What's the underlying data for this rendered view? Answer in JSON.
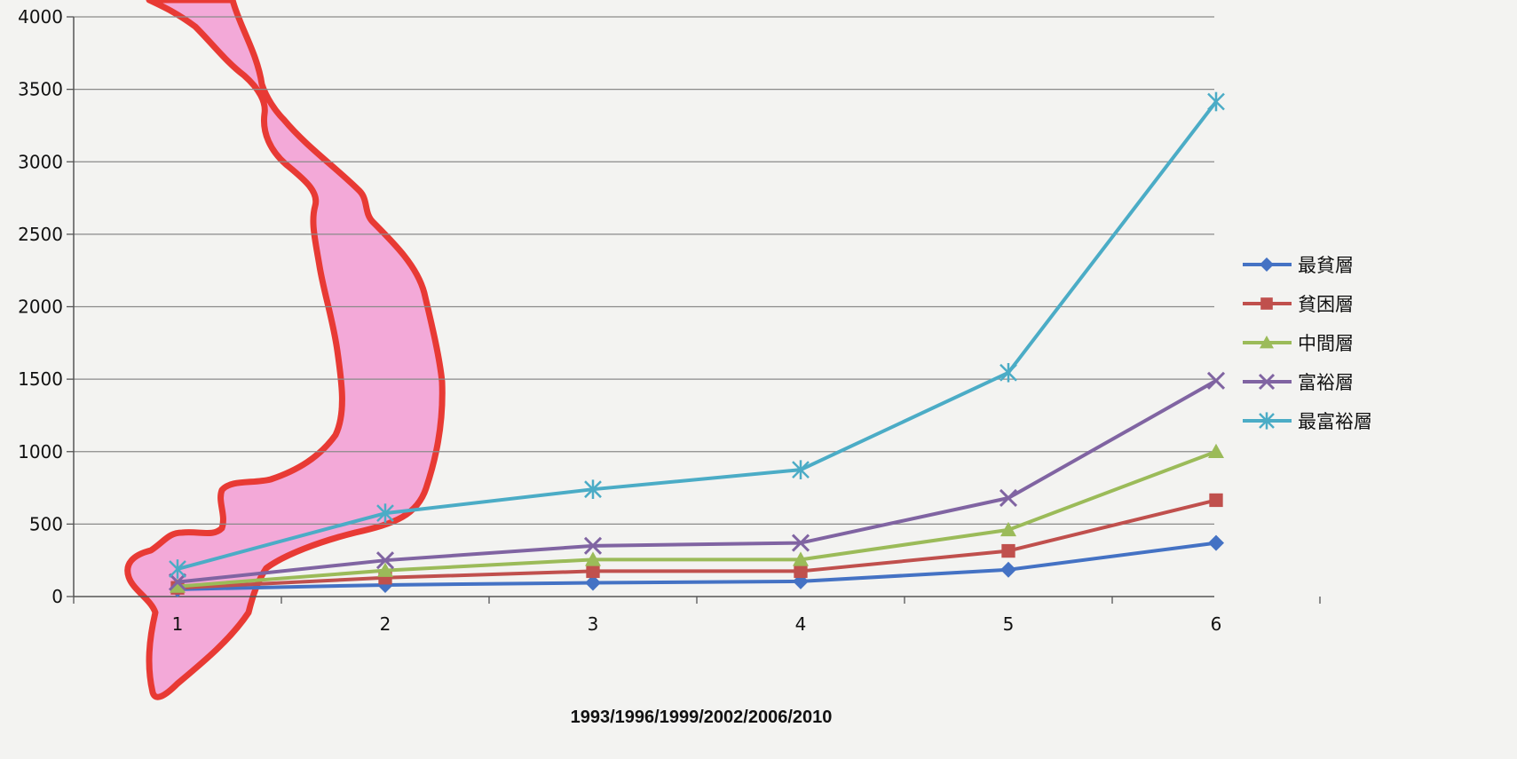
{
  "chart_data": {
    "type": "line",
    "title": "",
    "xlabel": "1993/1996/1999/2002/2006/2010",
    "ylabel": "",
    "x": [
      1,
      2,
      3,
      4,
      5,
      6
    ],
    "x_tick_labels": [
      "1",
      "2",
      "3",
      "4",
      "5",
      "6"
    ],
    "ylim": [
      0,
      4000
    ],
    "y_ticks": [
      0,
      500,
      1000,
      1500,
      2000,
      2500,
      3000,
      3500,
      4000
    ],
    "grid": "horizontal",
    "legend_position": "right",
    "series": [
      {
        "name": "最貧層",
        "marker": "diamond",
        "color": "#4472c4",
        "values": [
          50,
          80,
          95,
          105,
          185,
          370
        ]
      },
      {
        "name": "貧困層",
        "marker": "square",
        "color": "#c0504d",
        "values": [
          60,
          130,
          175,
          175,
          315,
          665
        ]
      },
      {
        "name": "中間層",
        "marker": "triangle",
        "color": "#9bbb59",
        "values": [
          70,
          180,
          255,
          255,
          460,
          1000
        ]
      },
      {
        "name": "富裕層",
        "marker": "x",
        "color": "#8064a2",
        "values": [
          100,
          250,
          350,
          370,
          680,
          1490
        ]
      },
      {
        "name": "最富裕層",
        "marker": "star",
        "color": "#4bacc6",
        "values": [
          190,
          575,
          740,
          875,
          1545,
          3415
        ]
      }
    ]
  },
  "background_art": {
    "description_icon": "vietnam-map-drawing",
    "fill_color": "#f4a6d7",
    "stroke_color": "#e8312a"
  }
}
